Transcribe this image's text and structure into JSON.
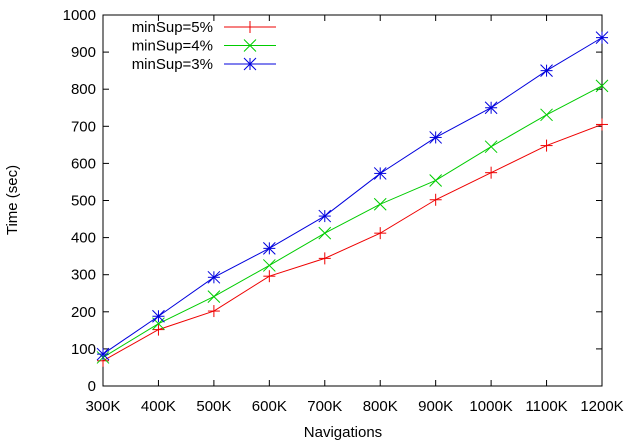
{
  "chart_data": {
    "type": "line",
    "xlabel": "Navigations",
    "ylabel": "Time (sec)",
    "categories": [
      "300K",
      "400K",
      "500K",
      "600K",
      "700K",
      "800K",
      "900K",
      "1000K",
      "1100K",
      "1200K"
    ],
    "ylim": [
      0,
      1000
    ],
    "yticks": [
      0,
      100,
      200,
      300,
      400,
      500,
      600,
      700,
      800,
      900,
      1000
    ],
    "grid": false,
    "legend_position": "top-left",
    "series": [
      {
        "name": "minSup=5%",
        "color": "#ee0000",
        "marker": "plus",
        "values": [
          68,
          152,
          202,
          296,
          344,
          412,
          502,
          575,
          648,
          705
        ]
      },
      {
        "name": "minSup=4%",
        "color": "#00cc00",
        "marker": "cross",
        "values": [
          77,
          168,
          241,
          325,
          412,
          490,
          554,
          645,
          731,
          809
        ]
      },
      {
        "name": "minSup=3%",
        "color": "#0000dd",
        "marker": "star",
        "values": [
          86,
          188,
          293,
          371,
          458,
          573,
          670,
          750,
          850,
          939
        ]
      }
    ]
  }
}
